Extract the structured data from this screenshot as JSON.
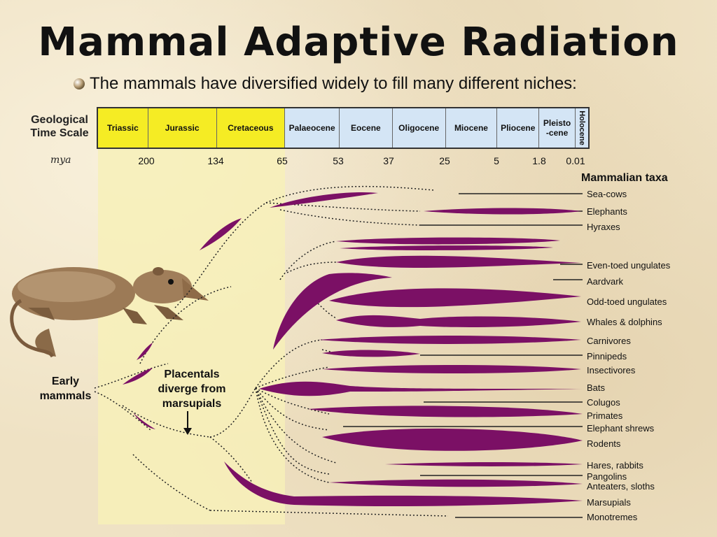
{
  "title": "Mammal Adaptive Radiation",
  "subtitle": "The mammals have diversified widely to fill many different niches:",
  "time_scale": {
    "label": "Geological Time Scale",
    "mya_label": "mya",
    "periods": [
      {
        "name": "Triassic"
      },
      {
        "name": "Jurassic"
      },
      {
        "name": "Cretaceous"
      },
      {
        "name": "Palaeocene"
      },
      {
        "name": "Eocene"
      },
      {
        "name": "Oligocene"
      },
      {
        "name": "Miocene"
      },
      {
        "name": "Pliocene"
      },
      {
        "name": "Pleisto-cene"
      },
      {
        "name": "Holocene"
      }
    ],
    "ticks": [
      "200",
      "134",
      "65",
      "53",
      "37",
      "25",
      "5",
      "1.8",
      "0.01"
    ]
  },
  "taxa_header": "Mammalian taxa",
  "taxa": [
    "Sea-cows",
    "Elephants",
    "Hyraxes",
    "Even-toed ungulates",
    "Aardvark",
    "Odd-toed ungulates",
    "Whales & dolphins",
    "Carnivores",
    "Pinnipeds",
    "Insectivores",
    "Bats",
    "Colugos",
    "Primates",
    "Elephant shrews",
    "Rodents",
    "Hares, rabbits",
    "Pangolins",
    "Anteaters, sloths",
    "Marsupials",
    "Monotremes"
  ],
  "annotations": {
    "early": "Early mammals",
    "placentals": "Placentals diverge from marsupials"
  },
  "colors": {
    "lineage": "#7b1065",
    "mesozoic": "#f5ec24",
    "cenozoic": "#d4e5f5"
  }
}
